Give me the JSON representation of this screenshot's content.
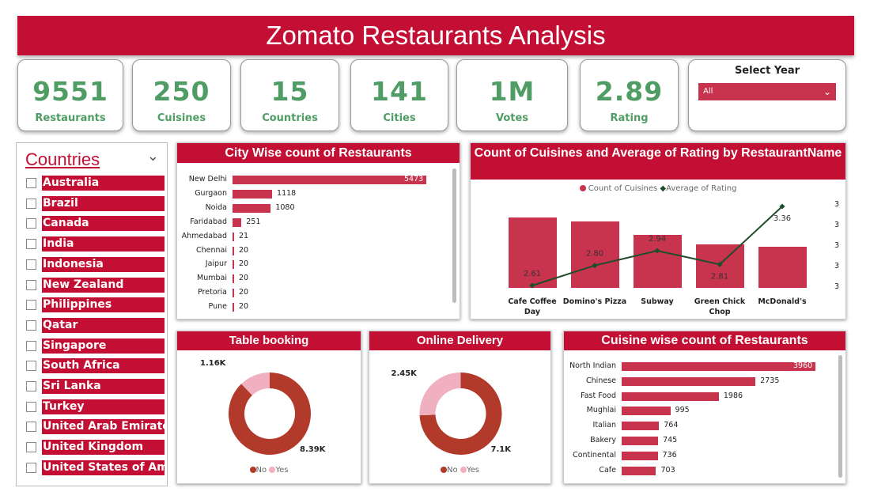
{
  "title": "Zomato Restaurants Analysis",
  "kpis": [
    {
      "value": "9551",
      "label": "Restaurants"
    },
    {
      "value": "250",
      "label": "Cuisines"
    },
    {
      "value": "15",
      "label": "Countries"
    },
    {
      "value": "141",
      "label": "Cities"
    },
    {
      "value": "1M",
      "label": "Votes"
    },
    {
      "value": "2.89",
      "label": "Rating"
    }
  ],
  "year_filter": {
    "label": "Select Year",
    "value": "All"
  },
  "countries": {
    "title": "Countries",
    "items": [
      "Australia",
      "Brazil",
      "Canada",
      "India",
      "Indonesia",
      "New Zealand",
      "Philippines",
      "Qatar",
      "Singapore",
      "South Africa",
      "Sri Lanka",
      "Turkey",
      "United Arab Emirates",
      "United Kingdom",
      "United States of Am..."
    ]
  },
  "colors": {
    "primary": "#c20f33",
    "bar": "#c8334d",
    "kpi": "#4f9d64",
    "line": "#1e4d2b",
    "donut_no": "#b23a2a",
    "donut_yes": "#f0b0c0"
  },
  "chart_data": [
    {
      "type": "bar",
      "orientation": "horizontal",
      "title": "City Wise count of Restaurants",
      "categories": [
        "New Delhi",
        "Gurgaon",
        "Noida",
        "Faridabad",
        "Ahmedabad",
        "Chennai",
        "Jaipur",
        "Mumbai",
        "Pretoria",
        "Pune"
      ],
      "values": [
        5473,
        1118,
        1080,
        251,
        21,
        20,
        20,
        20,
        20,
        20
      ]
    },
    {
      "type": "bar+line",
      "title": "Count of Cuisines and Average of Rating by RestaurantName",
      "legend": [
        "Count of Cuisines",
        "Average of Rating"
      ],
      "legend_position": "top",
      "categories": [
        "Cafe Coffee Day",
        "Domino's Pizza",
        "Subway",
        "Green Chick Chop",
        "McDonald's"
      ],
      "bar_values": [
        89,
        84,
        67,
        55,
        52
      ],
      "line_values": [
        2.61,
        2.8,
        2.94,
        2.81,
        3.36
      ],
      "line_labels": [
        "2.61",
        "2.80",
        "2.94",
        "2.81",
        "3.36"
      ],
      "y2_ticks": [
        "3",
        "3",
        "3",
        "3",
        "3"
      ]
    },
    {
      "type": "pie",
      "donut": true,
      "title": "Table booking",
      "labels": [
        "No",
        "Yes"
      ],
      "values": [
        8390,
        1160
      ],
      "value_labels": [
        "8.39K",
        "1.16K"
      ]
    },
    {
      "type": "pie",
      "donut": true,
      "title": "Online Delivery",
      "labels": [
        "No",
        "Yes"
      ],
      "values": [
        7100,
        2450
      ],
      "value_labels": [
        "7.1K",
        "2.45K"
      ]
    },
    {
      "type": "bar",
      "orientation": "horizontal",
      "title": "Cuisine wise count of Restaurants",
      "categories": [
        "North Indian",
        "Chinese",
        "Fast Food",
        "Mughlai",
        "Italian",
        "Bakery",
        "Continental",
        "Cafe"
      ],
      "values": [
        3960,
        2735,
        1986,
        995,
        764,
        745,
        736,
        703
      ]
    }
  ]
}
